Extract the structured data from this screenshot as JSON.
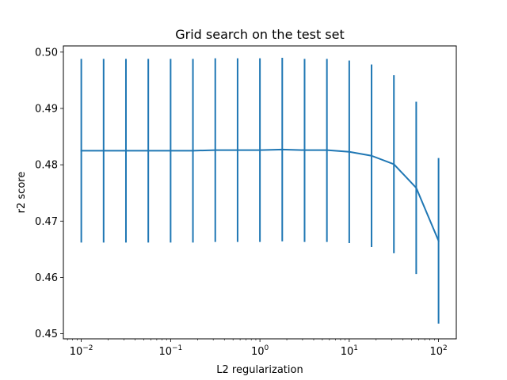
{
  "chart_data": {
    "type": "line",
    "title": "Grid search on the test set",
    "xlabel": "L2 regularization",
    "ylabel": "r2 score",
    "xscale": "log",
    "xlim": [
      0.0063,
      158
    ],
    "ylim": [
      0.4491,
      0.5011
    ],
    "grid": false,
    "legend": "none",
    "colors": {
      "series": "#1f77b4",
      "axes": "#000000",
      "background": "#ffffff"
    },
    "x_ticks": [
      {
        "value": 0.01,
        "base": "10",
        "exp": "−2"
      },
      {
        "value": 0.1,
        "base": "10",
        "exp": "−1"
      },
      {
        "value": 1,
        "base": "10",
        "exp": "0"
      },
      {
        "value": 10,
        "base": "10",
        "exp": "1"
      },
      {
        "value": 100,
        "base": "10",
        "exp": "2"
      }
    ],
    "y_ticks": [
      {
        "value": 0.45,
        "label": "0.45"
      },
      {
        "value": 0.46,
        "label": "0.46"
      },
      {
        "value": 0.47,
        "label": "0.47"
      },
      {
        "value": 0.48,
        "label": "0.48"
      },
      {
        "value": 0.49,
        "label": "0.49"
      },
      {
        "value": 0.5,
        "label": "0.50"
      }
    ],
    "series": [
      {
        "x": [
          0.01,
          0.01778,
          0.03162,
          0.05623,
          0.1,
          0.1778,
          0.3162,
          0.5623,
          1,
          1.778,
          3.162,
          5.623,
          10,
          17.78,
          31.62,
          56.23,
          100
        ],
        "y": [
          0.4825,
          0.4825,
          0.4825,
          0.4825,
          0.4825,
          0.4825,
          0.4826,
          0.4826,
          0.4826,
          0.4827,
          0.4826,
          0.4826,
          0.4823,
          0.4816,
          0.4801,
          0.4759,
          0.4665
        ],
        "err_low": [
          0.4662,
          0.4662,
          0.4662,
          0.4662,
          0.4662,
          0.4662,
          0.4663,
          0.4663,
          0.4663,
          0.4664,
          0.4663,
          0.4663,
          0.4661,
          0.4654,
          0.4643,
          0.4606,
          0.4518
        ],
        "err_high": [
          0.4988,
          0.4988,
          0.4988,
          0.4988,
          0.4988,
          0.4988,
          0.4989,
          0.4989,
          0.4989,
          0.499,
          0.4988,
          0.4988,
          0.4985,
          0.4978,
          0.4959,
          0.4912,
          0.4812
        ]
      }
    ]
  }
}
